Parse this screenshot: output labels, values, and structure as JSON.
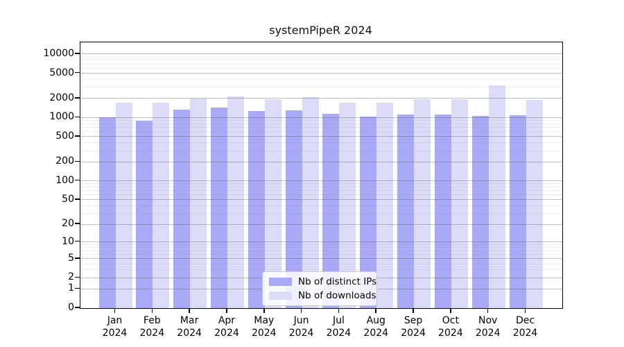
{
  "title": "systemPipeR 2024",
  "legend": {
    "items": [
      {
        "label": "Nb of distinct IPs",
        "color": "#a9a9f7"
      },
      {
        "label": "Nb of downloads",
        "color": "#dcdcf8"
      }
    ]
  },
  "chart_data": {
    "type": "bar",
    "title": "systemPipeR 2024",
    "categories": [
      "Jan 2024",
      "Feb 2024",
      "Mar 2024",
      "Apr 2024",
      "May 2024",
      "Jun 2024",
      "Jul 2024",
      "Aug 2024",
      "Sep 2024",
      "Oct 2024",
      "Nov 2024",
      "Dec 2024"
    ],
    "series": [
      {
        "name": "Nb of distinct IPs",
        "color": "#a9a9f7",
        "values": [
          1020,
          900,
          1325,
          1430,
          1260,
          1310,
          1150,
          1030,
          1110,
          1115,
          1060,
          1085
        ]
      },
      {
        "name": "Nb of downloads",
        "color": "#dcdcf8",
        "values": [
          1705,
          1725,
          2000,
          2140,
          1960,
          2080,
          1730,
          1700,
          1950,
          1965,
          3240,
          1910
        ]
      }
    ],
    "yscale": "log10(value+1)",
    "yticks": [
      0,
      1,
      2,
      5,
      10,
      20,
      50,
      100,
      200,
      500,
      1000,
      2000,
      5000,
      10000
    ],
    "ylim": [
      0,
      15000
    ],
    "xlabel": "",
    "ylabel": "",
    "grid": "horizontal, major + minor log lines",
    "legend_position": "inside bottom-center",
    "bar_colors": {
      "distinct_ips": "#a9a9f7",
      "downloads": "#dcdcf8"
    },
    "gridline_major_color": "#a6a6a6",
    "gridline_minor_color": "#e9e9e9",
    "axis_color": "#000000"
  }
}
